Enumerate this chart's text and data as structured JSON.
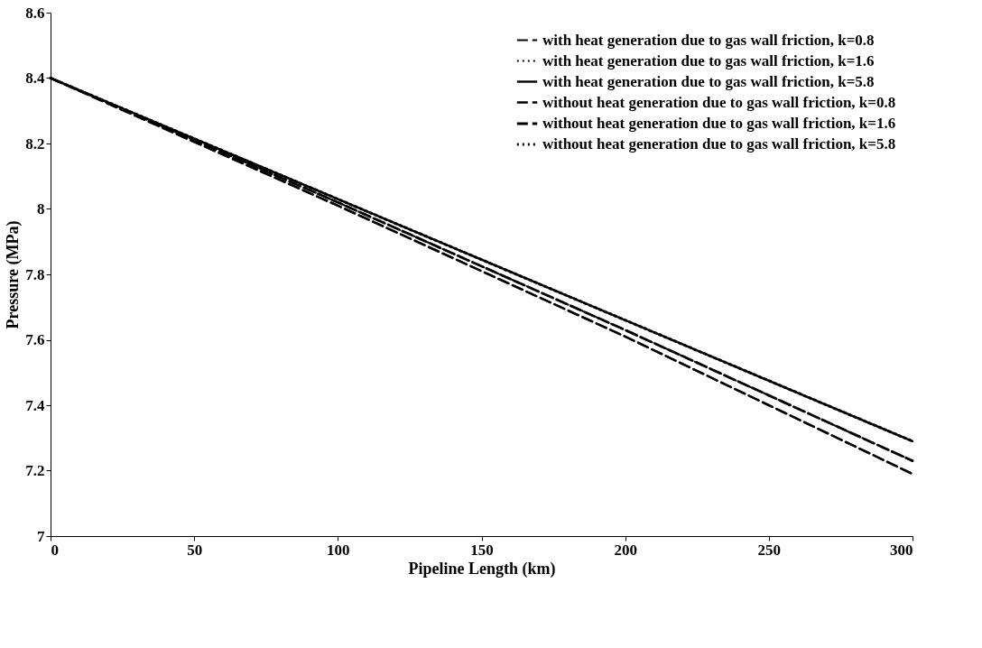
{
  "chart_data": {
    "type": "line",
    "xlabel": "Pipeline Length (km)",
    "ylabel": "Pressure (MPa)",
    "x": [
      0,
      50,
      100,
      150,
      200,
      250,
      300
    ],
    "series": [
      {
        "name": "with heat generation due to gas wall friction, k=0.8",
        "color": "#000000",
        "line_style": "dashed",
        "values": [
          8.4,
          8.205,
          8.01,
          7.81,
          7.61,
          7.4,
          7.19
        ]
      },
      {
        "name": "with heat generation due to gas wall friction, k=1.6",
        "color": "#000000",
        "line_style": "dotted",
        "values": [
          8.4,
          8.21,
          8.02,
          7.825,
          7.63,
          7.43,
          7.23
        ]
      },
      {
        "name": "with heat generation due to gas wall friction, k=5.8",
        "color": "#000000",
        "line_style": "solid",
        "values": [
          8.4,
          8.215,
          8.03,
          7.845,
          7.66,
          7.475,
          7.29
        ]
      },
      {
        "name": "without heat generation due to gas wall friction, k=0.8",
        "color": "#000000",
        "line_style": "dashed",
        "values": [
          8.4,
          8.205,
          8.01,
          7.81,
          7.61,
          7.4,
          7.19
        ]
      },
      {
        "name": "without heat generation due to gas wall friction, k=1.6",
        "color": "#000000",
        "line_style": "dashed",
        "values": [
          8.4,
          8.21,
          8.02,
          7.825,
          7.63,
          7.43,
          7.23
        ]
      },
      {
        "name": "without heat generation due to gas wall friction, k=5.8",
        "color": "#000000",
        "line_style": "dotted",
        "values": [
          8.4,
          8.215,
          8.03,
          7.845,
          7.66,
          7.475,
          7.29
        ]
      }
    ],
    "xlim": [
      0,
      300
    ],
    "xticks": [
      0,
      50,
      100,
      150,
      200,
      250,
      300
    ],
    "ylim": [
      7,
      8.6
    ],
    "yticks": [
      7,
      7.2,
      7.4,
      7.6,
      7.8,
      8,
      8.2,
      8.4,
      8.6
    ],
    "grid": false,
    "legend": "top right"
  }
}
